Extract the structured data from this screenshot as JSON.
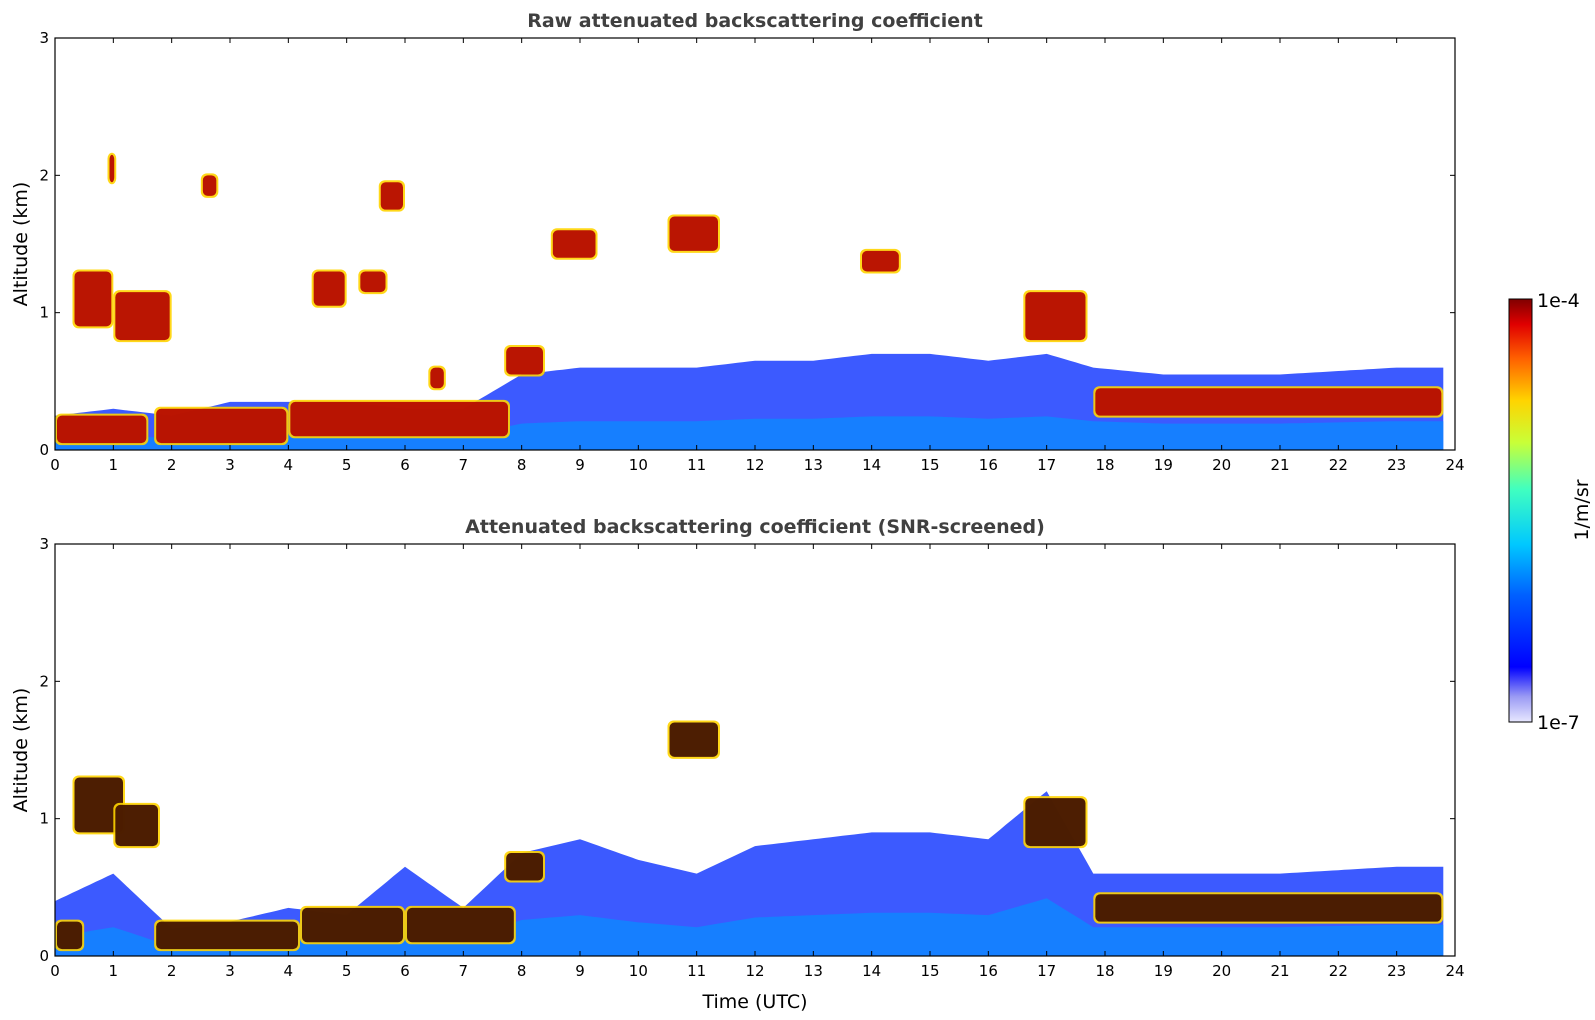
{
  "chart_data": [
    {
      "type": "heatmap",
      "title": "Raw attenuated backscattering coefficient",
      "xlabel": "",
      "ylabel": "Altitude (km)",
      "xlim": [
        0,
        24
      ],
      "ylim": [
        0,
        3
      ],
      "xticks": [
        "0",
        "1",
        "2",
        "3",
        "4",
        "5",
        "6",
        "7",
        "8",
        "9",
        "10",
        "11",
        "12",
        "13",
        "14",
        "15",
        "16",
        "17",
        "18",
        "19",
        "20",
        "21",
        "22",
        "23",
        "24"
      ],
      "yticks": [
        "0",
        "1",
        "2",
        "3"
      ],
      "data_end_time": 23.8,
      "aerosol_layer": [
        {
          "time": 0.0,
          "top_km": 0.25
        },
        {
          "time": 1.0,
          "top_km": 0.3
        },
        {
          "time": 2.0,
          "top_km": 0.25
        },
        {
          "time": 3.0,
          "top_km": 0.35
        },
        {
          "time": 4.0,
          "top_km": 0.35
        },
        {
          "time": 5.0,
          "top_km": 0.35
        },
        {
          "time": 6.0,
          "top_km": 0.3
        },
        {
          "time": 7.0,
          "top_km": 0.3
        },
        {
          "time": 8.0,
          "top_km": 0.55
        },
        {
          "time": 9.0,
          "top_km": 0.6
        },
        {
          "time": 10.0,
          "top_km": 0.6
        },
        {
          "time": 11.0,
          "top_km": 0.6
        },
        {
          "time": 12.0,
          "top_km": 0.65
        },
        {
          "time": 13.0,
          "top_km": 0.65
        },
        {
          "time": 14.0,
          "top_km": 0.7
        },
        {
          "time": 15.0,
          "top_km": 0.7
        },
        {
          "time": 16.0,
          "top_km": 0.65
        },
        {
          "time": 17.0,
          "top_km": 0.7
        },
        {
          "time": 17.8,
          "top_km": 0.6
        },
        {
          "time": 19.0,
          "top_km": 0.55
        },
        {
          "time": 21.0,
          "top_km": 0.55
        },
        {
          "time": 23.0,
          "top_km": 0.6
        },
        {
          "time": 23.8,
          "top_km": 0.6
        }
      ],
      "strong_layers": [
        {
          "t0": 0.0,
          "t1": 1.6,
          "z0_km": 0.05,
          "z1_km": 0.25
        },
        {
          "t0": 0.3,
          "t1": 1.0,
          "z0_km": 0.9,
          "z1_km": 1.3
        },
        {
          "t0": 1.0,
          "t1": 2.0,
          "z0_km": 0.8,
          "z1_km": 1.15
        },
        {
          "t0": 0.9,
          "t1": 1.05,
          "z0_km": 1.95,
          "z1_km": 2.15
        },
        {
          "t0": 1.7,
          "t1": 4.0,
          "z0_km": 0.05,
          "z1_km": 0.3
        },
        {
          "t0": 2.5,
          "t1": 2.8,
          "z0_km": 1.85,
          "z1_km": 2.0
        },
        {
          "t0": 4.4,
          "t1": 5.0,
          "z0_km": 1.05,
          "z1_km": 1.3
        },
        {
          "t0": 5.2,
          "t1": 5.7,
          "z0_km": 1.15,
          "z1_km": 1.3
        },
        {
          "t0": 5.55,
          "t1": 6.0,
          "z0_km": 1.75,
          "z1_km": 1.95
        },
        {
          "t0": 4.0,
          "t1": 7.8,
          "z0_km": 0.1,
          "z1_km": 0.35
        },
        {
          "t0": 6.4,
          "t1": 6.7,
          "z0_km": 0.45,
          "z1_km": 0.6
        },
        {
          "t0": 7.7,
          "t1": 8.4,
          "z0_km": 0.55,
          "z1_km": 0.75
        },
        {
          "t0": 8.5,
          "t1": 9.3,
          "z0_km": 1.4,
          "z1_km": 1.6
        },
        {
          "t0": 10.5,
          "t1": 11.4,
          "z0_km": 1.45,
          "z1_km": 1.7
        },
        {
          "t0": 13.8,
          "t1": 14.5,
          "z0_km": 1.3,
          "z1_km": 1.45
        },
        {
          "t0": 16.6,
          "t1": 17.7,
          "z0_km": 0.8,
          "z1_km": 1.15
        },
        {
          "t0": 17.8,
          "t1": 23.8,
          "z0_km": 0.25,
          "z1_km": 0.45
        }
      ],
      "colorbar": {
        "label": "1/m/sr",
        "min_label": "1e-7",
        "max_label": "1e-4",
        "cmap": "jet",
        "scale": "log"
      }
    },
    {
      "type": "heatmap",
      "title": "Attenuated backscattering coefficient (SNR-screened)",
      "xlabel": "Time (UTC)",
      "ylabel": "Altitude (km)",
      "xlim": [
        0,
        24
      ],
      "ylim": [
        0,
        3
      ],
      "xticks": [
        "0",
        "1",
        "2",
        "3",
        "4",
        "5",
        "6",
        "7",
        "8",
        "9",
        "10",
        "11",
        "12",
        "13",
        "14",
        "15",
        "16",
        "17",
        "18",
        "19",
        "20",
        "21",
        "22",
        "23",
        "24"
      ],
      "yticks": [
        "0",
        "1",
        "2",
        "3"
      ],
      "data_end_time": 23.8,
      "screened_note": "same field as above with low-SNR pixels removed (white)",
      "aerosol_layer": [
        {
          "time": 0.0,
          "top_km": 0.4
        },
        {
          "time": 1.0,
          "top_km": 0.6
        },
        {
          "time": 2.0,
          "top_km": 0.2
        },
        {
          "time": 3.0,
          "top_km": 0.25
        },
        {
          "time": 4.0,
          "top_km": 0.35
        },
        {
          "time": 5.0,
          "top_km": 0.3
        },
        {
          "time": 6.0,
          "top_km": 0.65
        },
        {
          "time": 7.0,
          "top_km": 0.35
        },
        {
          "time": 8.0,
          "top_km": 0.75
        },
        {
          "time": 9.0,
          "top_km": 0.85
        },
        {
          "time": 10.0,
          "top_km": 0.7
        },
        {
          "time": 11.0,
          "top_km": 0.6
        },
        {
          "time": 12.0,
          "top_km": 0.8
        },
        {
          "time": 13.0,
          "top_km": 0.85
        },
        {
          "time": 14.0,
          "top_km": 0.9
        },
        {
          "time": 15.0,
          "top_km": 0.9
        },
        {
          "time": 16.0,
          "top_km": 0.85
        },
        {
          "time": 17.0,
          "top_km": 1.2
        },
        {
          "time": 17.8,
          "top_km": 0.6
        },
        {
          "time": 19.0,
          "top_km": 0.6
        },
        {
          "time": 21.0,
          "top_km": 0.6
        },
        {
          "time": 23.0,
          "top_km": 0.65
        },
        {
          "time": 23.8,
          "top_km": 0.65
        }
      ],
      "strong_layers": [
        {
          "t0": 0.0,
          "t1": 0.5,
          "z0_km": 0.05,
          "z1_km": 0.25
        },
        {
          "t0": 0.3,
          "t1": 1.2,
          "z0_km": 0.9,
          "z1_km": 1.3
        },
        {
          "t0": 1.0,
          "t1": 1.8,
          "z0_km": 0.8,
          "z1_km": 1.1
        },
        {
          "t0": 1.7,
          "t1": 4.2,
          "z0_km": 0.05,
          "z1_km": 0.25
        },
        {
          "t0": 4.2,
          "t1": 6.0,
          "z0_km": 0.1,
          "z1_km": 0.35
        },
        {
          "t0": 6.0,
          "t1": 7.9,
          "z0_km": 0.1,
          "z1_km": 0.35
        },
        {
          "t0": 7.7,
          "t1": 8.4,
          "z0_km": 0.55,
          "z1_km": 0.75
        },
        {
          "t0": 10.5,
          "t1": 11.4,
          "z0_km": 1.45,
          "z1_km": 1.7
        },
        {
          "t0": 16.6,
          "t1": 17.7,
          "z0_km": 0.8,
          "z1_km": 1.15
        },
        {
          "t0": 17.8,
          "t1": 23.8,
          "z0_km": 0.25,
          "z1_km": 0.45
        }
      ],
      "colorbar": {
        "label": "1/m/sr",
        "min_label": "1e-7",
        "max_label": "1e-4",
        "cmap": "jet",
        "scale": "log"
      }
    }
  ]
}
